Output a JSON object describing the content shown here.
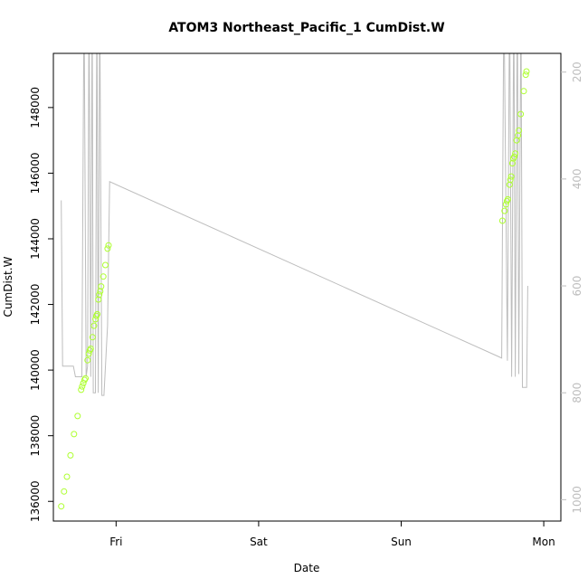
{
  "chart_data": {
    "type": "scatter",
    "title": "ATOM3 Northeast_Pacific_1 CumDist.W",
    "xlabel": "Date",
    "ylabel": "CumDist.W",
    "x_ticks": [
      "Fri",
      "Sat",
      "Sun",
      "Mon"
    ],
    "x_tick_positions_days": [
      1,
      2,
      3,
      4
    ],
    "xlim_days": [
      0.56,
      4.12
    ],
    "ylim": [
      135400,
      149650
    ],
    "y_ticks": [
      136000,
      138000,
      140000,
      142000,
      144000,
      146000,
      148000
    ],
    "y2_ticks": [
      200,
      400,
      600,
      800,
      1000
    ],
    "y2lim": [
      1040,
      165
    ],
    "colors": {
      "points": "#adff2f",
      "line": "#bdbdbd",
      "axis": "#000000",
      "axis_right": "#bdbdbd"
    },
    "series": [
      {
        "type": "points",
        "axis": "left",
        "points": [
          [
            0.615,
            135850
          ],
          [
            0.635,
            136300
          ],
          [
            0.655,
            136750
          ],
          [
            0.68,
            137400
          ],
          [
            0.705,
            138050
          ],
          [
            0.73,
            138600
          ],
          [
            0.755,
            139400
          ],
          [
            0.762,
            139500
          ],
          [
            0.77,
            139600
          ],
          [
            0.778,
            139700
          ],
          [
            0.785,
            139750
          ],
          [
            0.8,
            140300
          ],
          [
            0.808,
            140500
          ],
          [
            0.815,
            140600
          ],
          [
            0.822,
            140650
          ],
          [
            0.835,
            141000
          ],
          [
            0.845,
            141350
          ],
          [
            0.855,
            141550
          ],
          [
            0.862,
            141650
          ],
          [
            0.868,
            141700
          ],
          [
            0.876,
            142150
          ],
          [
            0.882,
            142300
          ],
          [
            0.889,
            142400
          ],
          [
            0.895,
            142550
          ],
          [
            0.91,
            142850
          ],
          [
            0.925,
            143200
          ],
          [
            0.94,
            143700
          ],
          [
            0.947,
            143800
          ],
          [
            3.71,
            144550
          ],
          [
            3.725,
            144850
          ],
          [
            3.735,
            145050
          ],
          [
            3.742,
            145150
          ],
          [
            3.748,
            145200
          ],
          [
            3.76,
            145650
          ],
          [
            3.766,
            145800
          ],
          [
            3.772,
            145900
          ],
          [
            3.78,
            146300
          ],
          [
            3.787,
            146450
          ],
          [
            3.793,
            146500
          ],
          [
            3.8,
            146600
          ],
          [
            3.81,
            147000
          ],
          [
            3.82,
            147150
          ],
          [
            3.825,
            147300
          ],
          [
            3.838,
            147800
          ],
          [
            3.86,
            148500
          ],
          [
            3.874,
            149000
          ],
          [
            3.879,
            149100
          ]
        ]
      },
      {
        "type": "line",
        "axis": "right",
        "points": [
          [
            0.615,
            440
          ],
          [
            0.625,
            750
          ],
          [
            0.68,
            750
          ],
          [
            0.7,
            750
          ],
          [
            0.715,
            770
          ],
          [
            0.745,
            770
          ],
          [
            0.76,
            770
          ],
          [
            0.775,
            50
          ],
          [
            0.79,
            770
          ],
          [
            0.8,
            750
          ],
          [
            0.81,
            50
          ],
          [
            0.822,
            770
          ],
          [
            0.832,
            50
          ],
          [
            0.84,
            800
          ],
          [
            0.855,
            800
          ],
          [
            0.865,
            50
          ],
          [
            0.875,
            800
          ],
          [
            0.885,
            50
          ],
          [
            0.9,
            805
          ],
          [
            0.915,
            805
          ],
          [
            0.935,
            700
          ],
          [
            0.94,
            675
          ],
          [
            0.955,
            405
          ],
          [
            3.68,
            732
          ],
          [
            3.705,
            735
          ],
          [
            3.72,
            50
          ],
          [
            3.745,
            740
          ],
          [
            3.76,
            50
          ],
          [
            3.775,
            770
          ],
          [
            3.79,
            50
          ],
          [
            3.8,
            770
          ],
          [
            3.815,
            50
          ],
          [
            3.825,
            765
          ],
          [
            3.84,
            50
          ],
          [
            3.85,
            790
          ],
          [
            3.87,
            790
          ],
          [
            3.88,
            790
          ],
          [
            3.888,
            600
          ]
        ]
      }
    ]
  }
}
